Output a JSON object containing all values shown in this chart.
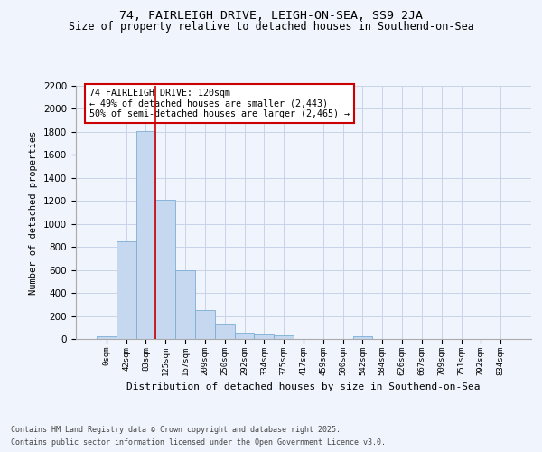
{
  "title": "74, FAIRLEIGH DRIVE, LEIGH-ON-SEA, SS9 2JA",
  "subtitle": "Size of property relative to detached houses in Southend-on-Sea",
  "xlabel": "Distribution of detached houses by size in Southend-on-Sea",
  "ylabel": "Number of detached properties",
  "bar_values": [
    25,
    845,
    1810,
    1210,
    600,
    255,
    130,
    55,
    40,
    30,
    0,
    0,
    0,
    20,
    0,
    0,
    0,
    0,
    0,
    0,
    0
  ],
  "bar_labels": [
    "0sqm",
    "42sqm",
    "83sqm",
    "125sqm",
    "167sqm",
    "209sqm",
    "250sqm",
    "292sqm",
    "334sqm",
    "375sqm",
    "417sqm",
    "459sqm",
    "500sqm",
    "542sqm",
    "584sqm",
    "626sqm",
    "667sqm",
    "709sqm",
    "751sqm",
    "792sqm",
    "834sqm"
  ],
  "bar_color": "#c5d8f0",
  "bar_edge_color": "#7aadd4",
  "grid_color": "#c8d4e8",
  "background_color": "#f0f4fc",
  "vline_color": "#cc0000",
  "annotation_text": "74 FAIRLEIGH DRIVE: 120sqm\n← 49% of detached houses are smaller (2,443)\n50% of semi-detached houses are larger (2,465) →",
  "annotation_box_color": "#cc0000",
  "ylim": [
    0,
    2200
  ],
  "yticks": [
    0,
    200,
    400,
    600,
    800,
    1000,
    1200,
    1400,
    1600,
    1800,
    2000,
    2200
  ],
  "footer_line1": "Contains HM Land Registry data © Crown copyright and database right 2025.",
  "footer_line2": "Contains public sector information licensed under the Open Government Licence v3.0.",
  "title_fontsize": 9.5,
  "subtitle_fontsize": 8.5
}
